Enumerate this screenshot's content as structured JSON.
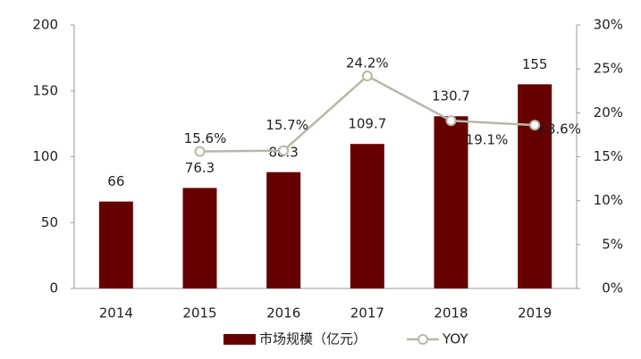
{
  "chart_data": {
    "type": "bar-line",
    "categories": [
      "2014",
      "2015",
      "2016",
      "2017",
      "2018",
      "2019"
    ],
    "series": [
      {
        "name": "市场规模（亿元）",
        "type": "bar",
        "color": "#660000",
        "values": [
          66,
          76.3,
          88.3,
          109.7,
          130.7,
          155
        ]
      },
      {
        "name": "YOY",
        "type": "line",
        "axis": "y2",
        "color": "#b8b8a8",
        "values": [
          null,
          15.6,
          15.7,
          24.2,
          19.1,
          18.6
        ],
        "value_labels": [
          null,
          "15.6%",
          "15.7%",
          "24.2%",
          "19.1%",
          "18.6%"
        ]
      }
    ],
    "ylim": [
      0,
      200
    ],
    "yticks": [
      0,
      50,
      100,
      150,
      200
    ],
    "y2lim": [
      0,
      30
    ],
    "y2ticks": [
      {
        "value": 0,
        "label": "0%"
      },
      {
        "value": 5,
        "label": "5%"
      },
      {
        "value": 10,
        "label": "10%"
      },
      {
        "value": 15,
        "label": "15%"
      },
      {
        "value": 20,
        "label": "20%"
      },
      {
        "value": 25,
        "label": "25%"
      },
      {
        "value": 30,
        "label": "30%"
      }
    ],
    "legend": "bottom"
  }
}
